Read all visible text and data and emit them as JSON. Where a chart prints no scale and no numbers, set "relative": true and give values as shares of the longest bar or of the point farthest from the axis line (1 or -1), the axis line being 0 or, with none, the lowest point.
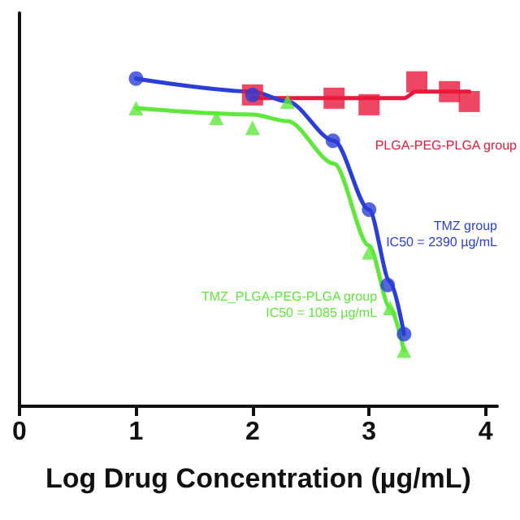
{
  "chart_data": {
    "type": "scatter",
    "relative": true,
    "xlabel": "Log Drug Concentration (µg/mL)",
    "xlim": [
      0,
      4.1
    ],
    "xticks": [
      0,
      1,
      2,
      3,
      4
    ],
    "tick_labels": "x",
    "grid": false,
    "legend": false,
    "annotations": [
      "IC50 = 2390 µg/mL",
      "IC50 = 1085 µg/mL"
    ],
    "series": [
      {
        "name": "PLGA-PEG-PLGA group",
        "color": "#e8193c",
        "marker": "square",
        "x": [
          2,
          2.7,
          3.0,
          3.41,
          3.69,
          3.86
        ],
        "values": [
          0.95,
          0.94,
          0.92,
          0.99,
          0.96,
          0.93
        ]
      },
      {
        "name": "TMZ group",
        "color": "#2b3fd6",
        "marker": "circle",
        "x": [
          1,
          2,
          2.69,
          3.0,
          3.16,
          3.3
        ],
        "values": [
          1.0,
          0.95,
          0.81,
          0.6,
          0.37,
          0.22
        ]
      },
      {
        "name": "TMZ_PLGA-PEG-PLGA group",
        "color": "#5ee83a",
        "marker": "triangle",
        "x": [
          1,
          1.69,
          2,
          2.3,
          3.0,
          3.18,
          3.3
        ],
        "values": [
          0.91,
          0.88,
          0.85,
          0.93,
          0.47,
          0.3,
          0.17
        ]
      },
      {
        "type": "line",
        "color": "#e8193c",
        "marker": "none",
        "x": [
          2,
          3.3,
          3.4,
          3.86
        ],
        "values": [
          0.94,
          0.94,
          0.96,
          0.96
        ]
      },
      {
        "type": "line",
        "color": "#2b3fd6",
        "marker": "none",
        "x": [
          1,
          2,
          2.3,
          2.7,
          3.0,
          3.18,
          3.3
        ],
        "values": [
          1.0,
          0.96,
          0.93,
          0.81,
          0.6,
          0.38,
          0.22
        ]
      },
      {
        "type": "line",
        "color": "#5ee83a",
        "marker": "none",
        "x": [
          1,
          2,
          2.3,
          2.7,
          3.0,
          3.18,
          3.3
        ],
        "values": [
          0.91,
          0.89,
          0.87,
          0.74,
          0.49,
          0.3,
          0.17
        ]
      }
    ]
  }
}
